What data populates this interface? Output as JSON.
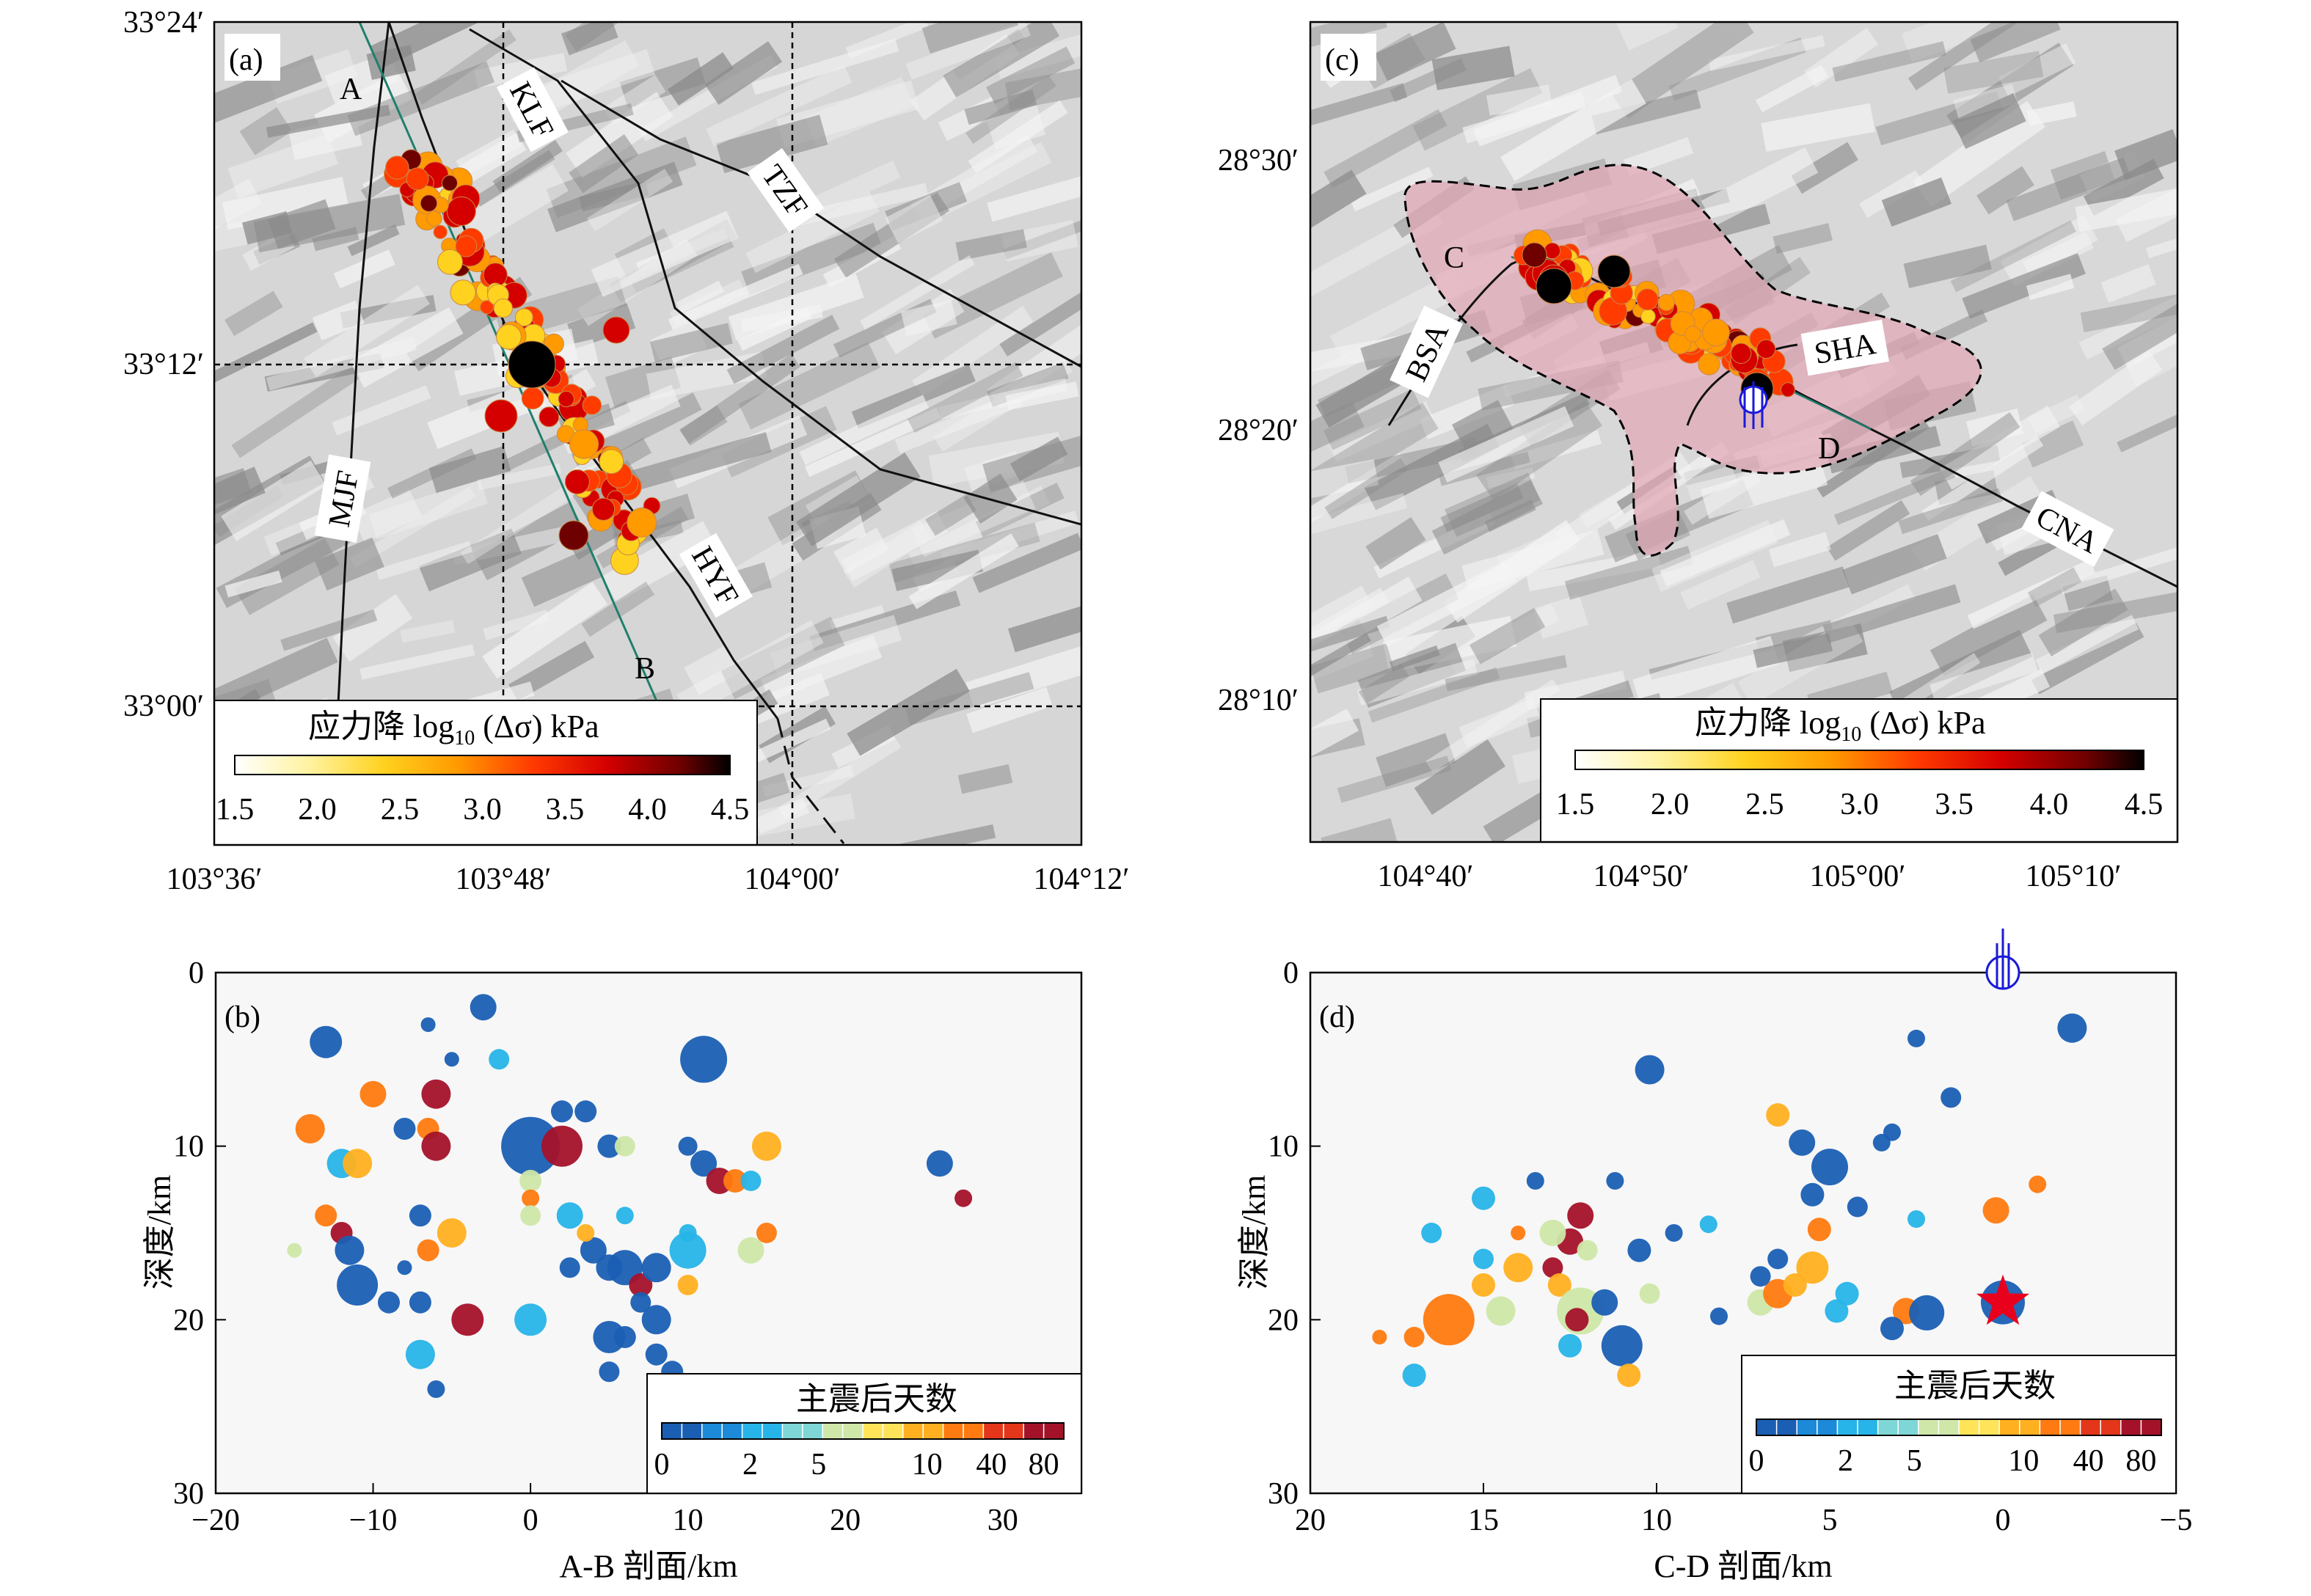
{
  "panels": {
    "a": {
      "label": "(a)",
      "lon_ticks": [
        "103°36′",
        "103°48′",
        "104°00′",
        "104°12′"
      ],
      "lat_ticks": [
        "33°24′",
        "33°12′",
        "33°00′"
      ],
      "faults": [
        "KLF",
        "TZF",
        "MJF",
        "HYF"
      ],
      "profile_ends": [
        "A",
        "B"
      ],
      "colorbar": {
        "title": "应力降 log",
        "title_sub": "10",
        "title_rest": " (Δσ) kPa",
        "ticks": [
          "1.5",
          "2.0",
          "2.5",
          "3.0",
          "3.5",
          "4.0",
          "4.5"
        ]
      }
    },
    "b": {
      "label": "(b)",
      "xlabel": "A-B 剖面/km",
      "ylabel": "深度/km",
      "xticks": [
        "−20",
        "−10",
        "0",
        "10",
        "20",
        "30"
      ],
      "yticks": [
        "0",
        "10",
        "20",
        "30"
      ],
      "colorbar": {
        "title": "主震后天数",
        "ticks": [
          "0",
          "2",
          "5",
          "10",
          "40",
          "80"
        ]
      }
    },
    "c": {
      "label": "(c)",
      "lon_ticks": [
        "104°40′",
        "104°50′",
        "105°00′",
        "105°10′"
      ],
      "lat_ticks": [
        "28°30′",
        "28°20′",
        "28°10′"
      ],
      "faults": [
        "BSA",
        "SHA",
        "CNA"
      ],
      "profile_ends": [
        "C",
        "D"
      ],
      "colorbar": {
        "title": "应力降 log",
        "title_sub": "10",
        "title_rest": " (Δσ) kPa",
        "ticks": [
          "1.5",
          "2.0",
          "2.5",
          "3.0",
          "3.5",
          "4.0",
          "4.5"
        ]
      }
    },
    "d": {
      "label": "(d)",
      "xlabel": "C-D 剖面/km",
      "ylabel": "深度/km",
      "xticks": [
        "20",
        "15",
        "10",
        "5",
        "0",
        "−5"
      ],
      "yticks": [
        "0",
        "10",
        "20",
        "30"
      ],
      "colorbar": {
        "title": "主震后天数",
        "ticks": [
          "0",
          "2",
          "5",
          "10",
          "40",
          "80"
        ]
      }
    }
  },
  "colors": {
    "stress_ramp": [
      "#ffffff",
      "#fff3a0",
      "#ffd21f",
      "#ff9a00",
      "#ff3b00",
      "#d40000",
      "#6e0000",
      "#000000"
    ],
    "days_ramp": [
      "#1a5fb4",
      "#1c8ad8",
      "#27b4e8",
      "#7fd6d6",
      "#cfe7a8",
      "#ffe45a",
      "#ffb020",
      "#ff7a10",
      "#e4361a",
      "#a4122a"
    ],
    "mainshock_star": "#e8001c",
    "focal_mechanism": "#1a1ad8"
  },
  "chart_data": [
    {
      "type": "scatter",
      "panel": "b",
      "xlabel": "A-B 剖面/km",
      "ylabel": "深度/km",
      "xlim": [
        -20,
        35
      ],
      "ylim": [
        0,
        30
      ],
      "y_inverted": true,
      "color_meaning": "主震后天数",
      "points": [
        {
          "x": -13,
          "y": 4,
          "mag": 2.2,
          "day": 0
        },
        {
          "x": -6.5,
          "y": 3,
          "mag": 1.0,
          "day": 0
        },
        {
          "x": -3,
          "y": 2,
          "mag": 1.8,
          "day": 0
        },
        {
          "x": -5,
          "y": 5,
          "mag": 1.0,
          "day": 0
        },
        {
          "x": -10,
          "y": 7,
          "mag": 1.8,
          "day": 40
        },
        {
          "x": -6,
          "y": 7,
          "mag": 2.0,
          "day": 80
        },
        {
          "x": -2,
          "y": 5,
          "mag": 1.4,
          "day": 2
        },
        {
          "x": 11,
          "y": 5,
          "mag": 3.2,
          "day": 0
        },
        {
          "x": -14,
          "y": 9,
          "mag": 2.0,
          "day": 40
        },
        {
          "x": -8,
          "y": 9,
          "mag": 1.5,
          "day": 0
        },
        {
          "x": -6.5,
          "y": 9,
          "mag": 1.5,
          "day": 40
        },
        {
          "x": -6,
          "y": 10,
          "mag": 2.0,
          "day": 80
        },
        {
          "x": 0,
          "y": 10,
          "mag": 4.0,
          "day": 0
        },
        {
          "x": 2,
          "y": 10,
          "mag": 2.8,
          "day": 80
        },
        {
          "x": 2,
          "y": 8,
          "mag": 1.5,
          "day": 0
        },
        {
          "x": 3.5,
          "y": 8,
          "mag": 1.5,
          "day": 0
        },
        {
          "x": -12,
          "y": 11,
          "mag": 2.0,
          "day": 2
        },
        {
          "x": -11,
          "y": 11,
          "mag": 2.0,
          "day": 10
        },
        {
          "x": 0,
          "y": 12,
          "mag": 1.5,
          "day": 5
        },
        {
          "x": 5,
          "y": 10,
          "mag": 1.6,
          "day": 0
        },
        {
          "x": 6,
          "y": 10,
          "mag": 1.4,
          "day": 5
        },
        {
          "x": 10,
          "y": 10,
          "mag": 1.3,
          "day": 0
        },
        {
          "x": 11,
          "y": 11,
          "mag": 1.8,
          "day": 0
        },
        {
          "x": 12,
          "y": 12,
          "mag": 1.8,
          "day": 80
        },
        {
          "x": 13,
          "y": 12,
          "mag": 1.6,
          "day": 40
        },
        {
          "x": 15,
          "y": 10,
          "mag": 2.0,
          "day": 10
        },
        {
          "x": 14,
          "y": 12,
          "mag": 1.4,
          "day": 2
        },
        {
          "x": 26,
          "y": 11,
          "mag": 1.8,
          "day": 0
        },
        {
          "x": 27.5,
          "y": 13,
          "mag": 1.2,
          "day": 80
        },
        {
          "x": -13,
          "y": 14,
          "mag": 1.5,
          "day": 40
        },
        {
          "x": -12,
          "y": 15,
          "mag": 1.5,
          "day": 80
        },
        {
          "x": -7,
          "y": 14,
          "mag": 1.5,
          "day": 0
        },
        {
          "x": -5,
          "y": 15,
          "mag": 2.0,
          "day": 10
        },
        {
          "x": -6.5,
          "y": 16,
          "mag": 1.5,
          "day": 40
        },
        {
          "x": -11.5,
          "y": 16,
          "mag": 2.0,
          "day": 0
        },
        {
          "x": -15,
          "y": 16,
          "mag": 1.0,
          "day": 5
        },
        {
          "x": -11,
          "y": 18,
          "mag": 2.8,
          "day": 0
        },
        {
          "x": -9,
          "y": 19,
          "mag": 1.5,
          "day": 0
        },
        {
          "x": -8,
          "y": 17,
          "mag": 1.0,
          "day": 0
        },
        {
          "x": -7,
          "y": 19,
          "mag": 1.5,
          "day": 0
        },
        {
          "x": -7,
          "y": 22,
          "mag": 2.0,
          "day": 2
        },
        {
          "x": -6,
          "y": 24,
          "mag": 1.2,
          "day": 0
        },
        {
          "x": -4,
          "y": 20,
          "mag": 2.2,
          "day": 80
        },
        {
          "x": 0,
          "y": 13,
          "mag": 1.2,
          "day": 40
        },
        {
          "x": 0,
          "y": 14,
          "mag": 1.4,
          "day": 5
        },
        {
          "x": 2.5,
          "y": 14,
          "mag": 1.8,
          "day": 2
        },
        {
          "x": 4,
          "y": 16,
          "mag": 1.8,
          "day": 0
        },
        {
          "x": 5,
          "y": 17,
          "mag": 1.8,
          "day": 0
        },
        {
          "x": 6,
          "y": 14,
          "mag": 1.2,
          "day": 2
        },
        {
          "x": 2.5,
          "y": 17,
          "mag": 1.4,
          "day": 0
        },
        {
          "x": 3.5,
          "y": 15,
          "mag": 1.2,
          "day": 10
        },
        {
          "x": 6,
          "y": 17,
          "mag": 2.4,
          "day": 0
        },
        {
          "x": 7,
          "y": 18,
          "mag": 1.6,
          "day": 80
        },
        {
          "x": 8,
          "y": 17,
          "mag": 2.0,
          "day": 0
        },
        {
          "x": 10,
          "y": 16,
          "mag": 2.5,
          "day": 2
        },
        {
          "x": 10,
          "y": 15,
          "mag": 1.2,
          "day": 2
        },
        {
          "x": 7,
          "y": 19,
          "mag": 1.4,
          "day": 0
        },
        {
          "x": 0,
          "y": 20,
          "mag": 2.2,
          "day": 2
        },
        {
          "x": 5,
          "y": 21,
          "mag": 2.2,
          "day": 0
        },
        {
          "x": 5,
          "y": 23,
          "mag": 1.4,
          "day": 0
        },
        {
          "x": 8,
          "y": 20,
          "mag": 2.0,
          "day": 0
        },
        {
          "x": 8,
          "y": 22,
          "mag": 1.5,
          "day": 0
        },
        {
          "x": 9,
          "y": 23,
          "mag": 1.5,
          "day": 0
        },
        {
          "x": 10,
          "y": 18,
          "mag": 1.4,
          "day": 10
        },
        {
          "x": 14,
          "y": 16,
          "mag": 1.8,
          "day": 5
        },
        {
          "x": 15,
          "y": 15,
          "mag": 1.4,
          "day": 40
        },
        {
          "x": 6,
          "y": 21,
          "mag": 1.5,
          "day": 0
        }
      ]
    },
    {
      "type": "scatter",
      "panel": "d",
      "xlabel": "C-D 剖面/km",
      "ylabel": "深度/km",
      "xlim": [
        20,
        -5
      ],
      "ylim": [
        0,
        30
      ],
      "y_inverted": true,
      "color_meaning": "主震后天数",
      "mainshock": {
        "x": 0,
        "y": 19
      },
      "focal_mechanism_at": {
        "x": 0,
        "y": 0
      },
      "points": [
        {
          "x": 10.2,
          "y": 5.6,
          "mag": 2.0,
          "day": 0
        },
        {
          "x": 6.5,
          "y": 8.2,
          "mag": 1.6,
          "day": 10
        },
        {
          "x": -2,
          "y": 3.2,
          "mag": 2.0,
          "day": 0
        },
        {
          "x": 2.5,
          "y": 3.8,
          "mag": 1.2,
          "day": 0
        },
        {
          "x": 1.5,
          "y": 7.2,
          "mag": 1.4,
          "day": 0
        },
        {
          "x": 5.8,
          "y": 9.8,
          "mag": 1.8,
          "day": 0
        },
        {
          "x": 5,
          "y": 11.2,
          "mag": 2.5,
          "day": 0
        },
        {
          "x": 3.2,
          "y": 9.2,
          "mag": 1.2,
          "day": 0
        },
        {
          "x": 3.5,
          "y": 9.8,
          "mag": 1.2,
          "day": 0
        },
        {
          "x": -1,
          "y": 12.2,
          "mag": 1.2,
          "day": 40
        },
        {
          "x": 0.2,
          "y": 13.7,
          "mag": 1.8,
          "day": 40
        },
        {
          "x": 5.5,
          "y": 12.8,
          "mag": 1.6,
          "day": 0
        },
        {
          "x": 4.2,
          "y": 13.5,
          "mag": 1.4,
          "day": 0
        },
        {
          "x": 2.5,
          "y": 14.2,
          "mag": 1.2,
          "day": 2
        },
        {
          "x": 5.3,
          "y": 14.8,
          "mag": 1.6,
          "day": 40
        },
        {
          "x": 15,
          "y": 13,
          "mag": 1.6,
          "day": 2
        },
        {
          "x": 16.5,
          "y": 15,
          "mag": 1.4,
          "day": 2
        },
        {
          "x": 13.5,
          "y": 12,
          "mag": 1.2,
          "day": 0
        },
        {
          "x": 12.2,
          "y": 14,
          "mag": 1.8,
          "day": 80
        },
        {
          "x": 11.2,
          "y": 12,
          "mag": 1.2,
          "day": 0
        },
        {
          "x": 9.5,
          "y": 15,
          "mag": 1.2,
          "day": 0
        },
        {
          "x": 8.5,
          "y": 14.5,
          "mag": 1.2,
          "day": 2
        },
        {
          "x": 10.5,
          "y": 16,
          "mag": 1.6,
          "day": 0
        },
        {
          "x": 12.5,
          "y": 15.5,
          "mag": 1.8,
          "day": 80
        },
        {
          "x": 13,
          "y": 15,
          "mag": 1.8,
          "day": 5
        },
        {
          "x": 14,
          "y": 15,
          "mag": 1.0,
          "day": 40
        },
        {
          "x": 12,
          "y": 16,
          "mag": 1.4,
          "day": 5
        },
        {
          "x": 15,
          "y": 16.5,
          "mag": 1.4,
          "day": 2
        },
        {
          "x": 14,
          "y": 17,
          "mag": 2.0,
          "day": 10
        },
        {
          "x": 13,
          "y": 17,
          "mag": 1.4,
          "day": 80
        },
        {
          "x": 12.8,
          "y": 18,
          "mag": 1.6,
          "day": 10
        },
        {
          "x": 15,
          "y": 18,
          "mag": 1.6,
          "day": 10
        },
        {
          "x": 16,
          "y": 20,
          "mag": 3.5,
          "day": 40
        },
        {
          "x": 14.5,
          "y": 19.5,
          "mag": 2.0,
          "day": 5
        },
        {
          "x": 12.2,
          "y": 19.5,
          "mag": 3.2,
          "day": 5
        },
        {
          "x": 11.5,
          "y": 19,
          "mag": 1.8,
          "day": 0
        },
        {
          "x": 12.3,
          "y": 20,
          "mag": 1.6,
          "day": 80
        },
        {
          "x": 11,
          "y": 21.5,
          "mag": 2.8,
          "day": 0
        },
        {
          "x": 10.2,
          "y": 18.5,
          "mag": 1.4,
          "day": 5
        },
        {
          "x": 10.8,
          "y": 23.2,
          "mag": 1.6,
          "day": 10
        },
        {
          "x": 17,
          "y": 23.2,
          "mag": 1.6,
          "day": 2
        },
        {
          "x": 17,
          "y": 21,
          "mag": 1.4,
          "day": 40
        },
        {
          "x": 18,
          "y": 21,
          "mag": 1.0,
          "day": 40
        },
        {
          "x": 12.5,
          "y": 21.5,
          "mag": 1.6,
          "day": 2
        },
        {
          "x": 8.2,
          "y": 19.8,
          "mag": 1.2,
          "day": 0
        },
        {
          "x": 7,
          "y": 19,
          "mag": 1.8,
          "day": 5
        },
        {
          "x": 6.5,
          "y": 18.5,
          "mag": 2.0,
          "day": 40
        },
        {
          "x": 6,
          "y": 18,
          "mag": 1.6,
          "day": 10
        },
        {
          "x": 5.5,
          "y": 17,
          "mag": 2.2,
          "day": 10
        },
        {
          "x": 7,
          "y": 17.5,
          "mag": 1.4,
          "day": 0
        },
        {
          "x": 6.5,
          "y": 16.5,
          "mag": 1.4,
          "day": 0
        },
        {
          "x": 4.8,
          "y": 19.5,
          "mag": 1.6,
          "day": 2
        },
        {
          "x": 4.5,
          "y": 18.5,
          "mag": 1.6,
          "day": 2
        },
        {
          "x": 2.8,
          "y": 19.5,
          "mag": 1.8,
          "day": 40
        },
        {
          "x": 3.2,
          "y": 20.5,
          "mag": 1.6,
          "day": 0
        },
        {
          "x": 2.2,
          "y": 19.6,
          "mag": 2.4,
          "day": 0
        },
        {
          "x": 0,
          "y": 19,
          "mag": 3.0,
          "day": 0
        }
      ]
    }
  ]
}
